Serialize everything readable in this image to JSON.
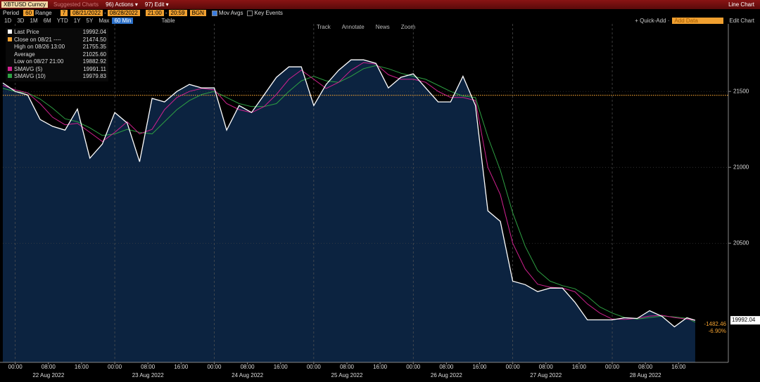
{
  "header": {
    "ticker": "XBTUSD Curncy",
    "suggested": "Suggested Charts",
    "actions": "96) Actions ▾",
    "edit": "97) Edit ▾",
    "view": "Line Chart"
  },
  "controls": {
    "period_label": "Period",
    "period": "60",
    "range_label": "Range",
    "range": "7",
    "start_date": "08/21/2022",
    "end_date": "08/28/2022",
    "separator": "-",
    "start_time": "21:00",
    "end_time": "20:59",
    "market": "BGN",
    "mov_avgs": "Mov Avgs",
    "key_events": "Key Events",
    "timeframes": [
      "1D",
      "3D",
      "1M",
      "6M",
      "YTD",
      "1Y",
      "5Y",
      "Max"
    ],
    "interval": "60 Min",
    "table": "Table",
    "quick_add": "+ Quick-Add ·",
    "add_data": "Add Data",
    "edit_chart": "Edit Chart"
  },
  "tools": [
    "Track",
    "Annotate",
    "News",
    "Zoom"
  ],
  "legend": [
    {
      "label": "Last Price",
      "value": "19992.04",
      "color": "#ffffff"
    },
    {
      "label": "Close on 08/21 ----",
      "value": "21474.50",
      "color": "#f0a030"
    },
    {
      "label": "High on 08/26 13:00",
      "value": "21755.35"
    },
    {
      "label": "Average",
      "value": "21025.60"
    },
    {
      "label": "Low on 08/27 21:00",
      "value": "19882.92"
    },
    {
      "label": "SMAVG (5)",
      "value": "19991.11",
      "color": "#d0218f"
    },
    {
      "label": "SMAVG (10)",
      "value": "19979.83",
      "color": "#2ea043"
    }
  ],
  "chart_data": {
    "type": "line",
    "x": [
      "2022-08-21 21:00",
      "2022-08-22 00:00",
      "2022-08-22 03:00",
      "2022-08-22 06:00",
      "2022-08-22 09:00",
      "2022-08-22 12:00",
      "2022-08-22 15:00",
      "2022-08-22 18:00",
      "2022-08-22 21:00",
      "2022-08-23 00:00",
      "2022-08-23 03:00",
      "2022-08-23 06:00",
      "2022-08-23 09:00",
      "2022-08-23 12:00",
      "2022-08-23 15:00",
      "2022-08-23 18:00",
      "2022-08-23 21:00",
      "2022-08-24 00:00",
      "2022-08-24 03:00",
      "2022-08-24 06:00",
      "2022-08-24 09:00",
      "2022-08-24 12:00",
      "2022-08-24 15:00",
      "2022-08-24 18:00",
      "2022-08-24 21:00",
      "2022-08-25 00:00",
      "2022-08-25 03:00",
      "2022-08-25 06:00",
      "2022-08-25 09:00",
      "2022-08-25 12:00",
      "2022-08-25 15:00",
      "2022-08-25 18:00",
      "2022-08-25 21:00",
      "2022-08-26 00:00",
      "2022-08-26 03:00",
      "2022-08-26 06:00",
      "2022-08-26 09:00",
      "2022-08-26 12:00",
      "2022-08-26 15:00",
      "2022-08-26 18:00",
      "2022-08-26 21:00",
      "2022-08-27 00:00",
      "2022-08-27 03:00",
      "2022-08-27 06:00",
      "2022-08-27 09:00",
      "2022-08-27 12:00",
      "2022-08-27 15:00",
      "2022-08-27 18:00",
      "2022-08-27 21:00",
      "2022-08-28 00:00",
      "2022-08-28 03:00",
      "2022-08-28 06:00",
      "2022-08-28 09:00",
      "2022-08-28 12:00",
      "2022-08-28 15:00",
      "2022-08-28 18:00",
      "2022-08-28 20:00"
    ],
    "series": [
      {
        "name": "Last Price",
        "color": "#ffffff",
        "values": [
          21556,
          21500,
          21477,
          21315,
          21270,
          21245,
          21384,
          21060,
          21153,
          21361,
          21292,
          21037,
          21454,
          21431,
          21500,
          21546,
          21523,
          21523,
          21245,
          21407,
          21361,
          21477,
          21593,
          21662,
          21662,
          21407,
          21546,
          21639,
          21708,
          21708,
          21685,
          21523,
          21593,
          21616,
          21523,
          21431,
          21431,
          21600,
          21407,
          20713,
          20644,
          20250,
          20227,
          20181,
          20204,
          20204,
          20111,
          19995,
          19995,
          19995,
          20009,
          20004,
          20055,
          20018,
          19949,
          20009,
          19992.04
        ]
      },
      {
        "name": "SMAVG (5)",
        "color": "#d0218f",
        "values": [
          21540,
          21510,
          21490,
          21420,
          21330,
          21280,
          21290,
          21230,
          21170,
          21230,
          21300,
          21220,
          21250,
          21380,
          21460,
          21500,
          21520,
          21510,
          21420,
          21380,
          21360,
          21400,
          21480,
          21580,
          21640,
          21580,
          21520,
          21560,
          21640,
          21690,
          21680,
          21610,
          21580,
          21580,
          21560,
          21500,
          21460,
          21460,
          21440,
          21000,
          20820,
          20500,
          20330,
          20230,
          20210,
          20205,
          20180,
          20100,
          20040,
          20000,
          19998,
          20005,
          20020,
          20025,
          20010,
          20000,
          19991.11
        ]
      },
      {
        "name": "SMAVG (10)",
        "color": "#2ea043",
        "values": [
          21520,
          21500,
          21490,
          21450,
          21390,
          21320,
          21300,
          21260,
          21210,
          21220,
          21250,
          21230,
          21220,
          21300,
          21380,
          21440,
          21480,
          21500,
          21460,
          21420,
          21400,
          21400,
          21420,
          21500,
          21570,
          21600,
          21570,
          21560,
          21600,
          21650,
          21670,
          21650,
          21620,
          21600,
          21580,
          21540,
          21500,
          21470,
          21460,
          21200,
          20980,
          20700,
          20480,
          20320,
          20250,
          20220,
          20200,
          20150,
          20080,
          20040,
          20010,
          20000,
          20010,
          20020,
          20015,
          20005,
          19979.83
        ]
      }
    ],
    "area_color": "#0c2340",
    "close_line": {
      "value": 21474.5,
      "color": "#f0a030"
    },
    "xlim": [
      "2022-08-21 21:00",
      "2022-08-29 04:00"
    ],
    "xticks": [
      {
        "value": "2022-08-22 00:00",
        "label": "00:00"
      },
      {
        "value": "2022-08-22 08:00",
        "label": "08:00"
      },
      {
        "value": "2022-08-22 16:00",
        "label": "16:00"
      },
      {
        "value": "2022-08-23 00:00",
        "label": "00:00"
      },
      {
        "value": "2022-08-23 08:00",
        "label": "08:00"
      },
      {
        "value": "2022-08-23 16:00",
        "label": "16:00"
      },
      {
        "value": "2022-08-24 00:00",
        "label": "00:00"
      },
      {
        "value": "2022-08-24 08:00",
        "label": "08:00"
      },
      {
        "value": "2022-08-24 16:00",
        "label": "16:00"
      },
      {
        "value": "2022-08-25 00:00",
        "label": "00:00"
      },
      {
        "value": "2022-08-25 08:00",
        "label": "08:00"
      },
      {
        "value": "2022-08-25 16:00",
        "label": "16:00"
      },
      {
        "value": "2022-08-26 00:00",
        "label": "00:00"
      },
      {
        "value": "2022-08-26 08:00",
        "label": "08:00"
      },
      {
        "value": "2022-08-26 16:00",
        "label": "16:00"
      },
      {
        "value": "2022-08-27 00:00",
        "label": "00:00"
      },
      {
        "value": "2022-08-27 08:00",
        "label": "08:00"
      },
      {
        "value": "2022-08-27 16:00",
        "label": "16:00"
      },
      {
        "value": "2022-08-28 00:00",
        "label": "00:00"
      },
      {
        "value": "2022-08-28 08:00",
        "label": "08:00"
      },
      {
        "value": "2022-08-28 16:00",
        "label": "16:00"
      }
    ],
    "day_labels": [
      "22 Aug 2022",
      "23 Aug 2022",
      "24 Aug 2022",
      "25 Aug 2022",
      "26 Aug 2022",
      "27 Aug 2022",
      "28 Aug 2022"
    ],
    "ylim": [
      19715,
      21945
    ],
    "yticks": [
      21500,
      21000,
      20500
    ],
    "change": "-1482.46",
    "change_pct": "-6.90%"
  }
}
